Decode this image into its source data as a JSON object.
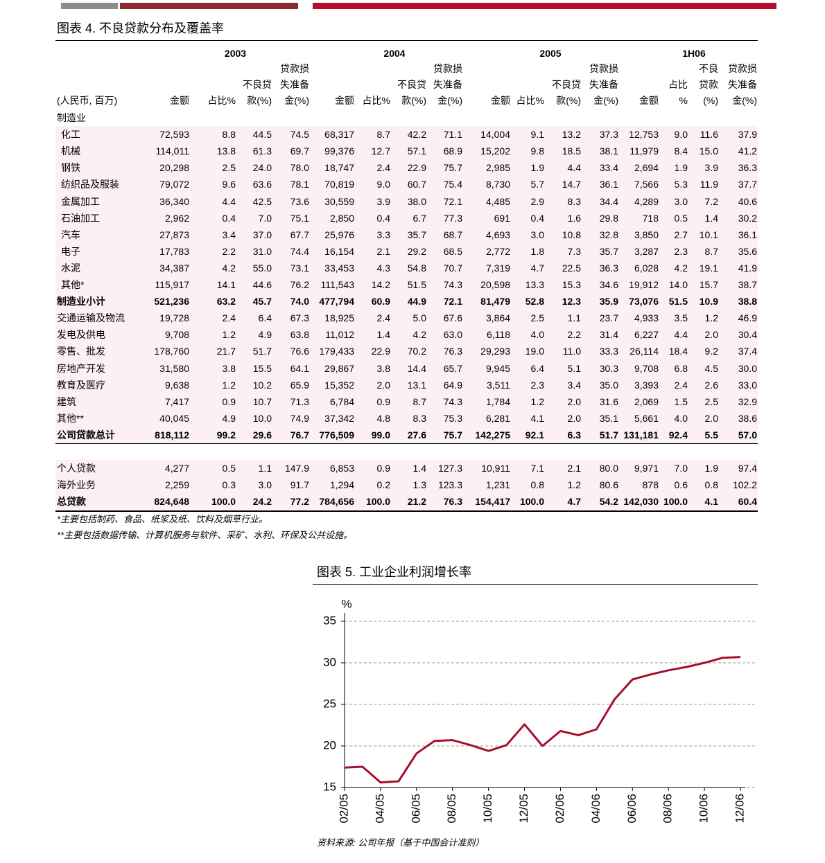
{
  "table": {
    "title": "图表 4. 不良贷款分布及覆盖率",
    "unit": "(人民币, 百万)",
    "years": [
      "2003",
      "2004",
      "2005",
      "1H06"
    ],
    "col_headers": [
      [
        "金额"
      ],
      [
        "占比%"
      ],
      [
        "不良贷",
        "款(%)"
      ],
      [
        "贷款损",
        "失准备",
        "金(%)"
      ],
      [
        "金额"
      ],
      [
        "占比%"
      ],
      [
        "不良贷",
        "款(%)"
      ],
      [
        "贷款损",
        "失准备",
        "金(%)"
      ],
      [
        "金额"
      ],
      [
        "占比%"
      ],
      [
        "不良贷",
        "款(%)"
      ],
      [
        "贷款损",
        "失准备",
        "金(%)"
      ],
      [
        "金额"
      ],
      [
        "占比",
        "%"
      ],
      [
        "不良",
        "贷款",
        "(%)"
      ],
      [
        "贷款损",
        "失准备",
        "金(%)"
      ]
    ],
    "sections": [
      {
        "rows": [
          {
            "label": "制造业",
            "values": []
          },
          {
            "label": "化工",
            "indent": true,
            "values": [
              "72,593",
              "8.8",
              "44.5",
              "74.5",
              "68,317",
              "8.7",
              "42.2",
              "71.1",
              "14,004",
              "9.1",
              "13.2",
              "37.3",
              "12,753",
              "9.0",
              "11.6",
              "37.9"
            ]
          },
          {
            "label": "机械",
            "indent": true,
            "values": [
              "114,011",
              "13.8",
              "61.3",
              "69.7",
              "99,376",
              "12.7",
              "57.1",
              "68.9",
              "15,202",
              "9.8",
              "18.5",
              "38.1",
              "11,979",
              "8.4",
              "15.0",
              "41.2"
            ]
          },
          {
            "label": "钢铁",
            "indent": true,
            "values": [
              "20,298",
              "2.5",
              "24.0",
              "78.0",
              "18,747",
              "2.4",
              "22.9",
              "75.7",
              "2,985",
              "1.9",
              "4.4",
              "33.4",
              "2,694",
              "1.9",
              "3.9",
              "36.3"
            ]
          },
          {
            "label": "纺织品及服装",
            "indent": true,
            "values": [
              "79,072",
              "9.6",
              "63.6",
              "78.1",
              "70,819",
              "9.0",
              "60.7",
              "75.4",
              "8,730",
              "5.7",
              "14.7",
              "36.1",
              "7,566",
              "5.3",
              "11.9",
              "37.7"
            ]
          },
          {
            "label": "金属加工",
            "indent": true,
            "values": [
              "36,340",
              "4.4",
              "42.5",
              "73.6",
              "30,559",
              "3.9",
              "38.0",
              "72.1",
              "4,485",
              "2.9",
              "8.3",
              "34.4",
              "4,289",
              "3.0",
              "7.2",
              "40.6"
            ]
          },
          {
            "label": "石油加工",
            "indent": true,
            "values": [
              "2,962",
              "0.4",
              "7.0",
              "75.1",
              "2,850",
              "0.4",
              "6.7",
              "77.3",
              "691",
              "0.4",
              "1.6",
              "29.8",
              "718",
              "0.5",
              "1.4",
              "30.2"
            ]
          },
          {
            "label": "汽车",
            "indent": true,
            "values": [
              "27,873",
              "3.4",
              "37.0",
              "67.7",
              "25,976",
              "3.3",
              "35.7",
              "68.7",
              "4,693",
              "3.0",
              "10.8",
              "32.8",
              "3,850",
              "2.7",
              "10.1",
              "36.1"
            ]
          },
          {
            "label": "电子",
            "indent": true,
            "values": [
              "17,783",
              "2.2",
              "31.0",
              "74.4",
              "16,154",
              "2.1",
              "29.2",
              "68.5",
              "2,772",
              "1.8",
              "7.3",
              "35.7",
              "3,287",
              "2.3",
              "8.7",
              "35.6"
            ]
          },
          {
            "label": "水泥",
            "indent": true,
            "values": [
              "34,387",
              "4.2",
              "55.0",
              "73.1",
              "33,453",
              "4.3",
              "54.8",
              "70.7",
              "7,319",
              "4.7",
              "22.5",
              "36.3",
              "6,028",
              "4.2",
              "19.1",
              "41.9"
            ]
          },
          {
            "label": "其他*",
            "indent": true,
            "values": [
              "115,917",
              "14.1",
              "44.6",
              "76.2",
              "111,543",
              "14.2",
              "51.5",
              "74.3",
              "20,598",
              "13.3",
              "15.3",
              "34.6",
              "19,912",
              "14.0",
              "15.7",
              "38.7"
            ]
          },
          {
            "label": "制造业小计",
            "bold": true,
            "values": [
              "521,236",
              "63.2",
              "45.7",
              "74.0",
              "477,794",
              "60.9",
              "44.9",
              "72.1",
              "81,479",
              "52.8",
              "12.3",
              "35.9",
              "73,076",
              "51.5",
              "10.9",
              "38.8"
            ]
          },
          {
            "label": "交通运输及物流",
            "values": [
              "19,728",
              "2.4",
              "6.4",
              "67.3",
              "18,925",
              "2.4",
              "5.0",
              "67.6",
              "3,864",
              "2.5",
              "1.1",
              "23.7",
              "4,933",
              "3.5",
              "1.2",
              "46.9"
            ]
          },
          {
            "label": "发电及供电",
            "values": [
              "9,708",
              "1.2",
              "4.9",
              "63.8",
              "11,012",
              "1.4",
              "4.2",
              "63.0",
              "6,118",
              "4.0",
              "2.2",
              "31.4",
              "6,227",
              "4.4",
              "2.0",
              "30.4"
            ]
          },
          {
            "label": "零售、批发",
            "values": [
              "178,760",
              "21.7",
              "51.7",
              "76.6",
              "179,433",
              "22.9",
              "70.2",
              "76.3",
              "29,293",
              "19.0",
              "11.0",
              "33.3",
              "26,114",
              "18.4",
              "9.2",
              "37.4"
            ]
          },
          {
            "label": "房地产开发",
            "values": [
              "31,580",
              "3.8",
              "15.5",
              "64.1",
              "29,867",
              "3.8",
              "14.4",
              "65.7",
              "9,945",
              "6.4",
              "5.1",
              "30.3",
              "9,708",
              "6.8",
              "4.5",
              "30.0"
            ]
          },
          {
            "label": "教育及医疗",
            "values": [
              "9,638",
              "1.2",
              "10.2",
              "65.9",
              "15,352",
              "2.0",
              "13.1",
              "64.9",
              "3,511",
              "2.3",
              "3.4",
              "35.0",
              "3,393",
              "2.4",
              "2.6",
              "33.0"
            ]
          },
          {
            "label": "建筑",
            "values": [
              "7,417",
              "0.9",
              "10.7",
              "71.3",
              "6,784",
              "0.9",
              "8.7",
              "74.3",
              "1,784",
              "1.2",
              "2.0",
              "31.6",
              "2,069",
              "1.5",
              "2.5",
              "32.9"
            ]
          },
          {
            "label": "其他**",
            "values": [
              "40,045",
              "4.9",
              "10.0",
              "74.9",
              "37,342",
              "4.8",
              "8.3",
              "75.3",
              "6,281",
              "4.1",
              "2.0",
              "35.1",
              "5,661",
              "4.0",
              "2.0",
              "38.6"
            ]
          },
          {
            "label": "公司贷款总计",
            "bold": true,
            "values": [
              "818,112",
              "99.2",
              "29.6",
              "76.7",
              "776,509",
              "99.0",
              "27.6",
              "75.7",
              "142,275",
              "92.1",
              "6.3",
              "51.7",
              "131,181",
              "92.4",
              "5.5",
              "57.0"
            ]
          }
        ]
      },
      {
        "rows": [
          {
            "label": "个人贷款",
            "values": [
              "4,277",
              "0.5",
              "1.1",
              "147.9",
              "6,853",
              "0.9",
              "1.4",
              "127.3",
              "10,911",
              "7.1",
              "2.1",
              "80.0",
              "9,971",
              "7.0",
              "1.9",
              "97.4"
            ]
          },
          {
            "label": "海外业务",
            "values": [
              "2,259",
              "0.3",
              "3.0",
              "91.7",
              "1,294",
              "0.2",
              "1.3",
              "123.3",
              "1,231",
              "0.8",
              "1.2",
              "80.6",
              "878",
              "0.6",
              "0.8",
              "102.2"
            ]
          },
          {
            "label": "总贷款",
            "bold": true,
            "values": [
              "824,648",
              "100.0",
              "24.2",
              "77.2",
              "784,656",
              "100.0",
              "21.2",
              "76.3",
              "154,417",
              "100.0",
              "4.7",
              "54.2",
              "142,030",
              "100.0",
              "4.1",
              "60.4"
            ]
          }
        ]
      }
    ],
    "notes": [
      "*主要包括制药、食品、纸浆及纸、饮料及烟草行业。",
      "**主要包括数据传输、计算机服务与软件、采矿、水利、环保及公共设施。"
    ]
  },
  "chart_data": {
    "type": "line",
    "title": "图表 5. 工业企业利润增长率",
    "y_label": "%",
    "categories": [
      "02/05",
      null,
      "04/05",
      null,
      "06/05",
      null,
      "08/05",
      null,
      "10/05",
      null,
      "12/05",
      null,
      "02/06",
      null,
      "04/06",
      null,
      "06/06",
      null,
      "08/06",
      null,
      "10/06",
      null,
      "12/06"
    ],
    "values": [
      17.4,
      17.5,
      15.6,
      15.75,
      19.1,
      20.6,
      20.7,
      20.1,
      19.4,
      20.1,
      22.6,
      20.0,
      21.8,
      21.3,
      22.0,
      25.6,
      28.0,
      28.6,
      29.1,
      29.5,
      30.0,
      30.6,
      30.7
    ],
    "color": "#a50f2d",
    "ylim": [
      15,
      35
    ],
    "yticks": [
      15,
      20,
      25,
      30,
      35
    ],
    "grid": true,
    "source": "资料来源: 公司年报（基于中国会计准则）"
  }
}
